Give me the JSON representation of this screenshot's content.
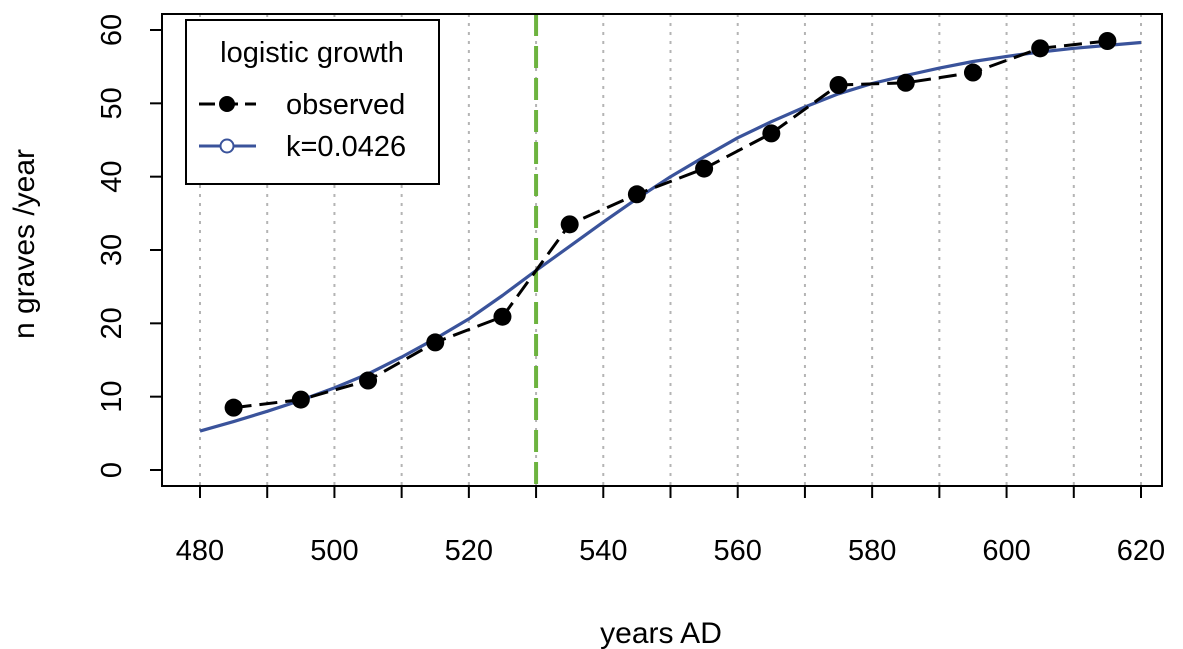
{
  "chart_data": {
    "type": "line",
    "title": "",
    "xlabel": "years AD",
    "ylabel": "n graves /year",
    "xlim": [
      480,
      620
    ],
    "ylim": [
      0,
      60
    ],
    "x_ticks": [
      480,
      500,
      520,
      540,
      560,
      580,
      600,
      620
    ],
    "x_tick_labels": [
      "480",
      "500",
      "520",
      "540",
      "560",
      "580",
      "600",
      "620"
    ],
    "x_minor_ticks": [
      480,
      490,
      500,
      510,
      520,
      530,
      540,
      550,
      560,
      570,
      580,
      590,
      600,
      610,
      620
    ],
    "y_ticks": [
      0,
      10,
      20,
      30,
      40,
      50,
      60
    ],
    "y_tick_labels": [
      "0",
      "10",
      "20",
      "30",
      "40",
      "50",
      "60"
    ],
    "grid": "vertical dotted gray lines every 10 years",
    "vline": {
      "x": 530,
      "color": "#6db33f",
      "style": "dashed"
    },
    "legend": {
      "title": "logistic growth",
      "position": "top-left",
      "entries": [
        "observed",
        "k=0.0426"
      ]
    },
    "series": [
      {
        "name": "observed",
        "style": "dashed-with-points",
        "color": "#000000",
        "x": [
          485,
          495,
          505,
          515,
          525,
          535,
          545,
          555,
          565,
          575,
          585,
          595,
          605,
          615
        ],
        "y": [
          8.5,
          9.6,
          12.2,
          17.4,
          20.9,
          33.5,
          37.6,
          41.1,
          45.9,
          52.5,
          52.8,
          54.2,
          57.5,
          58.5
        ]
      },
      {
        "name": "k=0.0426",
        "style": "solid",
        "color": "#3a539b",
        "x": [
          480,
          485,
          490,
          495,
          500,
          505,
          510,
          515,
          520,
          525,
          530,
          535,
          540,
          545,
          550,
          555,
          560,
          565,
          570,
          575,
          580,
          585,
          590,
          595,
          600,
          605,
          610,
          615,
          620
        ],
        "y": [
          5.3,
          6.6,
          8.0,
          9.5,
          11.2,
          13.1,
          15.4,
          17.9,
          20.6,
          23.8,
          27.2,
          30.5,
          33.8,
          37.0,
          40.0,
          42.7,
          45.3,
          47.5,
          49.5,
          51.3,
          52.7,
          53.8,
          54.8,
          55.7,
          56.4,
          57.0,
          57.5,
          57.9,
          58.3
        ]
      }
    ]
  }
}
